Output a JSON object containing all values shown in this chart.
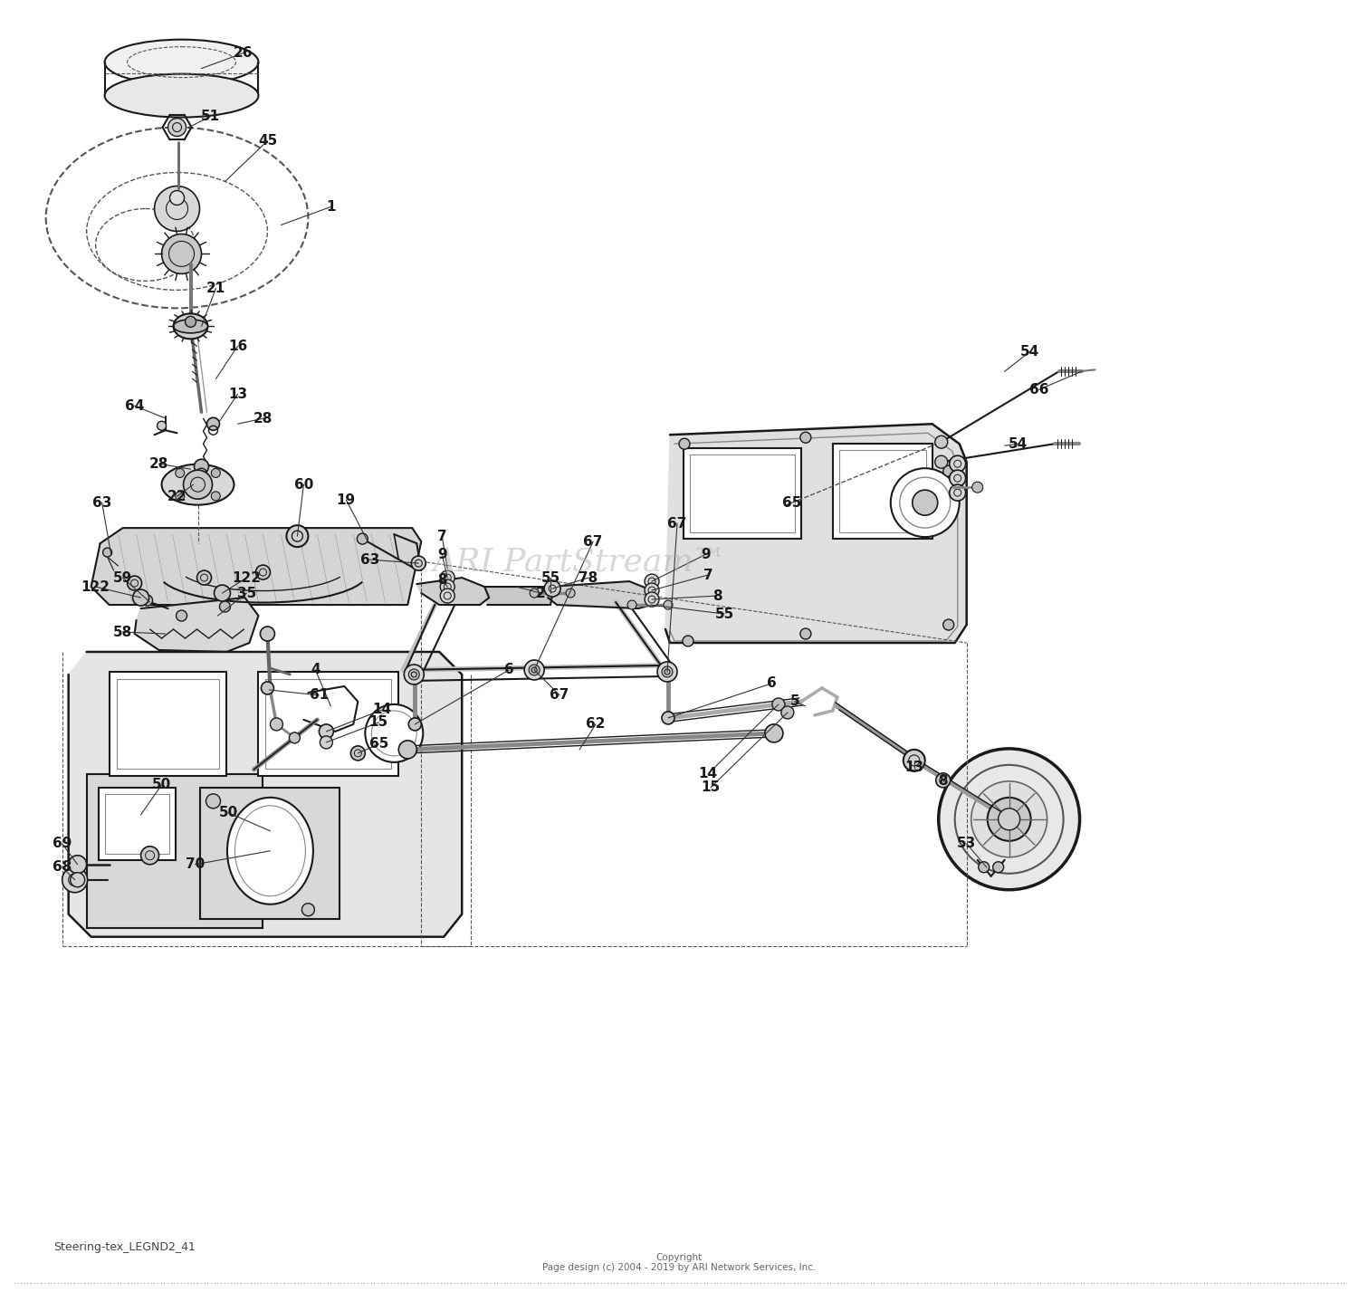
{
  "bg": "#ffffff",
  "lc": "#1a1a1a",
  "dc": "#555555",
  "wm_text": "ARI PartStream™",
  "wm_color": "#b0b0b0",
  "bottom_label": "Steering-tex_LEGND2_41",
  "copyright": "Copyright\nPage design (c) 2004 - 2019 by ARI Network Services, Inc.",
  "fig_w": 15.0,
  "fig_h": 14.27,
  "dpi": 100
}
